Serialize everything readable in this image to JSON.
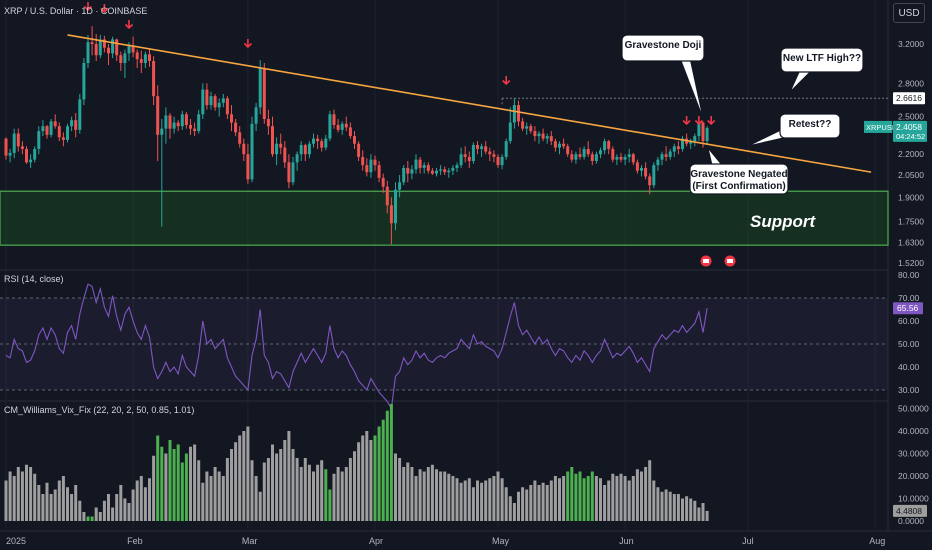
{
  "header": {
    "symbol_title": "XRP / U.S. Dollar · 1D · COINBASE",
    "currency_button": "USD"
  },
  "colors": {
    "background": "#131722",
    "up": "#26a69a",
    "down": "#ef5350",
    "trendline": "#f7a541",
    "support_zone": "#1b5e20",
    "rsi_line": "#7e57c2",
    "vix_gray": "#9e9e9e",
    "vix_green": "#4caf50"
  },
  "annotations": {
    "gravestone_doji": "Gravestone Doji",
    "new_ltf_high": "New LTF High??",
    "retest": "Retest??",
    "gravestone_negated": "Gravestone Negated\n(First Confirmation)",
    "support": "Support"
  },
  "price_labels": {
    "symbol_tag": "XRPUSD",
    "last_price": "2.4058",
    "countdown": "04:24:52",
    "level_marker": "2.6616"
  },
  "rsi_panel": {
    "title": "RSI (14, close)",
    "current": "65.56",
    "ticks": [
      "80.00",
      "70.00",
      "60.00",
      "50.00",
      "40.00",
      "30.00"
    ]
  },
  "vix_panel": {
    "title": "CM_Williams_Vix_Fix (22, 20, 2, 50, 0.85, 1.01)",
    "current": "4.4808",
    "ticks": [
      "50.0000",
      "40.0000",
      "30.0000",
      "20.0000",
      "10.0000",
      "0.0000"
    ]
  },
  "chart_data": {
    "type": "candlestick",
    "x_labels": [
      "2025",
      "Feb",
      "Mar",
      "Apr",
      "May",
      "Jun",
      "Jul",
      "Aug"
    ],
    "y_ticks": [
      "3.2000",
      "2.8000",
      "2.5000",
      "2.2000",
      "2.0500",
      "1.9000",
      "1.7500",
      "1.6300",
      "1.5200"
    ],
    "scale": "log",
    "support_zone": [
      1.615,
      1.94
    ],
    "trendline": [
      {
        "date": "2025-01-16",
        "price": 3.3
      },
      {
        "date": "2025-07-31",
        "price": 2.07
      }
    ],
    "level_line": 2.6616,
    "ohlc": [
      [
        2.32,
        2.33,
        2.16,
        2.19
      ],
      [
        2.19,
        2.24,
        2.14,
        2.21
      ],
      [
        2.21,
        2.4,
        2.17,
        2.36
      ],
      [
        2.36,
        2.4,
        2.22,
        2.26
      ],
      [
        2.26,
        2.3,
        2.2,
        2.24
      ],
      [
        2.24,
        2.26,
        2.13,
        2.14
      ],
      [
        2.14,
        2.2,
        2.1,
        2.16
      ],
      [
        2.16,
        2.26,
        2.14,
        2.24
      ],
      [
        2.24,
        2.42,
        2.2,
        2.38
      ],
      [
        2.38,
        2.47,
        2.34,
        2.42
      ],
      [
        2.42,
        2.43,
        2.32,
        2.35
      ],
      [
        2.35,
        2.48,
        2.33,
        2.46
      ],
      [
        2.46,
        2.52,
        2.4,
        2.42
      ],
      [
        2.42,
        2.45,
        2.3,
        2.33
      ],
      [
        2.33,
        2.37,
        2.26,
        2.31
      ],
      [
        2.31,
        2.44,
        2.29,
        2.42
      ],
      [
        2.42,
        2.5,
        2.38,
        2.47
      ],
      [
        2.47,
        2.53,
        2.33,
        2.39
      ],
      [
        2.39,
        2.7,
        2.36,
        2.65
      ],
      [
        2.65,
        3.05,
        2.6,
        3.0
      ],
      [
        3.0,
        3.3,
        2.95,
        3.22
      ],
      [
        3.22,
        3.4,
        3.08,
        3.2
      ],
      [
        3.2,
        3.31,
        3.02,
        3.08
      ],
      [
        3.08,
        3.3,
        3.05,
        3.25
      ],
      [
        3.25,
        3.29,
        3.11,
        3.16
      ],
      [
        3.16,
        3.2,
        2.98,
        3.1
      ],
      [
        3.1,
        3.28,
        3.05,
        3.25
      ],
      [
        3.25,
        3.26,
        3.02,
        3.08
      ],
      [
        3.08,
        3.12,
        2.92,
        3.0
      ],
      [
        3.0,
        3.14,
        2.85,
        3.1
      ],
      [
        3.1,
        3.22,
        3.02,
        3.18
      ],
      [
        3.18,
        3.28,
        3.06,
        3.11
      ],
      [
        3.11,
        3.14,
        2.95,
        3.04
      ],
      [
        3.04,
        3.13,
        2.9,
        3.0
      ],
      [
        3.0,
        3.12,
        2.95,
        3.09
      ],
      [
        3.09,
        3.15,
        2.96,
        3.02
      ],
      [
        3.02,
        3.07,
        2.6,
        2.68
      ],
      [
        2.68,
        2.78,
        2.15,
        2.35
      ],
      [
        2.35,
        2.48,
        1.72,
        2.4
      ],
      [
        2.4,
        2.58,
        2.28,
        2.51
      ],
      [
        2.51,
        2.53,
        2.32,
        2.4
      ],
      [
        2.4,
        2.5,
        2.36,
        2.45
      ],
      [
        2.45,
        2.47,
        2.38,
        2.42
      ],
      [
        2.42,
        2.55,
        2.39,
        2.52
      ],
      [
        2.52,
        2.54,
        2.4,
        2.43
      ],
      [
        2.43,
        2.48,
        2.35,
        2.4
      ],
      [
        2.4,
        2.45,
        2.34,
        2.38
      ],
      [
        2.38,
        2.56,
        2.36,
        2.52
      ],
      [
        2.52,
        2.8,
        2.48,
        2.74
      ],
      [
        2.74,
        2.8,
        2.56,
        2.6
      ],
      [
        2.6,
        2.72,
        2.56,
        2.68
      ],
      [
        2.68,
        2.7,
        2.55,
        2.58
      ],
      [
        2.58,
        2.66,
        2.5,
        2.62
      ],
      [
        2.62,
        2.7,
        2.58,
        2.66
      ],
      [
        2.66,
        2.68,
        2.48,
        2.52
      ],
      [
        2.52,
        2.6,
        2.38,
        2.45
      ],
      [
        2.45,
        2.48,
        2.34,
        2.37
      ],
      [
        2.37,
        2.42,
        2.25,
        2.28
      ],
      [
        2.28,
        2.32,
        2.15,
        2.2
      ],
      [
        2.2,
        2.28,
        1.99,
        2.02
      ],
      [
        2.02,
        2.5,
        2.0,
        2.44
      ],
      [
        2.44,
        2.62,
        2.38,
        2.58
      ],
      [
        2.58,
        3.03,
        2.52,
        2.95
      ],
      [
        2.95,
        3.0,
        2.44,
        2.48
      ],
      [
        2.48,
        2.56,
        2.35,
        2.42
      ],
      [
        2.42,
        2.5,
        2.18,
        2.2
      ],
      [
        2.2,
        2.33,
        2.12,
        2.28
      ],
      [
        2.28,
        2.36,
        2.2,
        2.25
      ],
      [
        2.25,
        2.3,
        2.1,
        2.14
      ],
      [
        2.14,
        2.2,
        1.96,
        2.0
      ],
      [
        2.0,
        2.18,
        1.98,
        2.14
      ],
      [
        2.14,
        2.22,
        2.08,
        2.2
      ],
      [
        2.2,
        2.3,
        2.15,
        2.27
      ],
      [
        2.27,
        2.28,
        2.15,
        2.2
      ],
      [
        2.2,
        2.3,
        2.17,
        2.28
      ],
      [
        2.28,
        2.36,
        2.25,
        2.32
      ],
      [
        2.32,
        2.35,
        2.24,
        2.3
      ],
      [
        2.3,
        2.32,
        2.22,
        2.25
      ],
      [
        2.25,
        2.35,
        2.23,
        2.32
      ],
      [
        2.32,
        2.55,
        2.3,
        2.52
      ],
      [
        2.52,
        2.56,
        2.4,
        2.43
      ],
      [
        2.43,
        2.48,
        2.37,
        2.39
      ],
      [
        2.39,
        2.46,
        2.35,
        2.44
      ],
      [
        2.44,
        2.5,
        2.38,
        2.41
      ],
      [
        2.41,
        2.45,
        2.32,
        2.34
      ],
      [
        2.34,
        2.38,
        2.24,
        2.28
      ],
      [
        2.28,
        2.3,
        2.15,
        2.18
      ],
      [
        2.18,
        2.23,
        2.08,
        2.12
      ],
      [
        2.12,
        2.17,
        2.04,
        2.07
      ],
      [
        2.07,
        2.2,
        2.03,
        2.16
      ],
      [
        2.16,
        2.19,
        2.08,
        2.12
      ],
      [
        2.12,
        2.15,
        2.0,
        2.03
      ],
      [
        2.03,
        2.06,
        1.93,
        1.97
      ],
      [
        1.97,
        2.01,
        1.8,
        1.85
      ],
      [
        1.85,
        1.9,
        1.62,
        1.74
      ],
      [
        1.74,
        2.0,
        1.7,
        1.95
      ],
      [
        1.95,
        2.05,
        1.9,
        2.0
      ],
      [
        2.0,
        2.12,
        1.98,
        2.1
      ],
      [
        2.1,
        2.15,
        2.0,
        2.06
      ],
      [
        2.06,
        2.12,
        2.02,
        2.09
      ],
      [
        2.09,
        2.2,
        2.06,
        2.16
      ],
      [
        2.16,
        2.18,
        2.06,
        2.1
      ],
      [
        2.1,
        2.14,
        2.06,
        2.12
      ],
      [
        2.12,
        2.14,
        2.06,
        2.08
      ],
      [
        2.08,
        2.1,
        2.05,
        2.06
      ],
      [
        2.06,
        2.1,
        2.04,
        2.08
      ],
      [
        2.08,
        2.12,
        2.05,
        2.09
      ],
      [
        2.09,
        2.11,
        2.05,
        2.07
      ],
      [
        2.07,
        2.1,
        2.03,
        2.08
      ],
      [
        2.08,
        2.12,
        2.05,
        2.1
      ],
      [
        2.1,
        2.14,
        2.07,
        2.12
      ],
      [
        2.12,
        2.25,
        2.1,
        2.2
      ],
      [
        2.2,
        2.26,
        2.14,
        2.18
      ],
      [
        2.18,
        2.22,
        2.1,
        2.15
      ],
      [
        2.15,
        2.29,
        2.13,
        2.27
      ],
      [
        2.27,
        2.3,
        2.2,
        2.24
      ],
      [
        2.24,
        2.28,
        2.18,
        2.26
      ],
      [
        2.26,
        2.3,
        2.2,
        2.22
      ],
      [
        2.22,
        2.25,
        2.15,
        2.2
      ],
      [
        2.2,
        2.23,
        2.14,
        2.18
      ],
      [
        2.18,
        2.2,
        2.1,
        2.12
      ],
      [
        2.12,
        2.2,
        2.09,
        2.18
      ],
      [
        2.18,
        2.32,
        2.16,
        2.3
      ],
      [
        2.3,
        2.58,
        2.28,
        2.45
      ],
      [
        2.45,
        2.66,
        2.4,
        2.6
      ],
      [
        2.6,
        2.64,
        2.42,
        2.46
      ],
      [
        2.46,
        2.49,
        2.38,
        2.4
      ],
      [
        2.4,
        2.45,
        2.35,
        2.42
      ],
      [
        2.42,
        2.44,
        2.36,
        2.38
      ],
      [
        2.38,
        2.42,
        2.3,
        2.34
      ],
      [
        2.34,
        2.38,
        2.28,
        2.36
      ],
      [
        2.36,
        2.4,
        2.3,
        2.32
      ],
      [
        2.32,
        2.36,
        2.28,
        2.34
      ],
      [
        2.34,
        2.38,
        2.27,
        2.3
      ],
      [
        2.3,
        2.32,
        2.22,
        2.25
      ],
      [
        2.25,
        2.3,
        2.2,
        2.28
      ],
      [
        2.28,
        2.32,
        2.24,
        2.26
      ],
      [
        2.26,
        2.28,
        2.18,
        2.2
      ],
      [
        2.2,
        2.23,
        2.14,
        2.16
      ],
      [
        2.16,
        2.22,
        2.13,
        2.2
      ],
      [
        2.2,
        2.25,
        2.16,
        2.18
      ],
      [
        2.18,
        2.26,
        2.16,
        2.24
      ],
      [
        2.24,
        2.3,
        2.18,
        2.2
      ],
      [
        2.2,
        2.22,
        2.12,
        2.15
      ],
      [
        2.15,
        2.22,
        2.13,
        2.2
      ],
      [
        2.2,
        2.25,
        2.17,
        2.23
      ],
      [
        2.23,
        2.32,
        2.2,
        2.3
      ],
      [
        2.3,
        2.31,
        2.2,
        2.24
      ],
      [
        2.24,
        2.26,
        2.14,
        2.16
      ],
      [
        2.16,
        2.2,
        2.12,
        2.18
      ],
      [
        2.18,
        2.21,
        2.14,
        2.16
      ],
      [
        2.16,
        2.2,
        2.12,
        2.18
      ],
      [
        2.18,
        2.24,
        2.14,
        2.2
      ],
      [
        2.2,
        2.21,
        2.12,
        2.14
      ],
      [
        2.14,
        2.16,
        2.06,
        2.08
      ],
      [
        2.08,
        2.12,
        2.04,
        2.1
      ],
      [
        2.1,
        2.14,
        2.02,
        2.04
      ],
      [
        2.04,
        2.06,
        1.92,
        1.98
      ],
      [
        1.98,
        2.14,
        1.96,
        2.12
      ],
      [
        2.12,
        2.18,
        2.08,
        2.16
      ],
      [
        2.16,
        2.22,
        2.12,
        2.2
      ],
      [
        2.2,
        2.26,
        2.15,
        2.18
      ],
      [
        2.18,
        2.24,
        2.16,
        2.22
      ],
      [
        2.22,
        2.28,
        2.18,
        2.26
      ],
      [
        2.26,
        2.3,
        2.2,
        2.24
      ],
      [
        2.24,
        2.34,
        2.22,
        2.32
      ],
      [
        2.32,
        2.36,
        2.26,
        2.28
      ],
      [
        2.28,
        2.32,
        2.24,
        2.3
      ],
      [
        2.3,
        2.36,
        2.26,
        2.34
      ],
      [
        2.34,
        2.48,
        2.3,
        2.45
      ],
      [
        2.45,
        2.46,
        2.25,
        2.3
      ],
      [
        2.3,
        2.42,
        2.28,
        2.4058
      ]
    ],
    "rsi": [
      45,
      44,
      52,
      48,
      47,
      42,
      43,
      47,
      54,
      57,
      52,
      57,
      54,
      48,
      46,
      55,
      58,
      52,
      63,
      70,
      76,
      75,
      68,
      74,
      66,
      62,
      71,
      62,
      56,
      63,
      66,
      60,
      55,
      52,
      58,
      53,
      40,
      35,
      38,
      42,
      38,
      40,
      37,
      45,
      40,
      38,
      36,
      45,
      60,
      50,
      52,
      48,
      50,
      52,
      44,
      40,
      36,
      34,
      32,
      30,
      45,
      52,
      65,
      45,
      42,
      35,
      38,
      37,
      34,
      31,
      38,
      42,
      46,
      42,
      45,
      48,
      45,
      42,
      46,
      58,
      48,
      44,
      47,
      45,
      41,
      38,
      34,
      32,
      30,
      35,
      32,
      29,
      27,
      25,
      22,
      36,
      38,
      44,
      41,
      43,
      47,
      44,
      46,
      43,
      42,
      44,
      45,
      44,
      46,
      47,
      48,
      52,
      50,
      48,
      54,
      50,
      51,
      49,
      48,
      47,
      44,
      48,
      55,
      62,
      68,
      58,
      54,
      56,
      53,
      50,
      53,
      50,
      52,
      48,
      45,
      48,
      47,
      44,
      42,
      45,
      43,
      47,
      45,
      42,
      45,
      47,
      52,
      48,
      44,
      46,
      45,
      47,
      49,
      46,
      42,
      44,
      41,
      38,
      48,
      51,
      54,
      52,
      54,
      56,
      55,
      58,
      55,
      57,
      59,
      64,
      55,
      65.56
    ],
    "vix": [
      18,
      22,
      20,
      24,
      22,
      25,
      24,
      21,
      16,
      12,
      17,
      12,
      14,
      18,
      20,
      15,
      12,
      16,
      9,
      4,
      2,
      2,
      6,
      4,
      9,
      12,
      6,
      12,
      16,
      10,
      8,
      14,
      18,
      20,
      15,
      19,
      29,
      38,
      33,
      30,
      36,
      32,
      34,
      26,
      30,
      33,
      34,
      27,
      17,
      22,
      20,
      24,
      22,
      20,
      28,
      32,
      35,
      38,
      40,
      42,
      27,
      20,
      13,
      26,
      28,
      34,
      30,
      32,
      36,
      40,
      32,
      28,
      24,
      28,
      25,
      22,
      25,
      27,
      23,
      14,
      21,
      24,
      22,
      24,
      28,
      31,
      35,
      38,
      40,
      36,
      38,
      42,
      45,
      49,
      52,
      30,
      28,
      24,
      26,
      24,
      20,
      23,
      22,
      24,
      25,
      23,
      22,
      22,
      21,
      20,
      19,
      17,
      18,
      19,
      15,
      18,
      17,
      18,
      19,
      20,
      22,
      19,
      15,
      11,
      8,
      13,
      15,
      14,
      16,
      18,
      16,
      17,
      16,
      18,
      20,
      19,
      20,
      22,
      24,
      21,
      22,
      19,
      20,
      22,
      20,
      19,
      16,
      18,
      21,
      20,
      21,
      20,
      18,
      20,
      23,
      22,
      24,
      27,
      18,
      15,
      13,
      14,
      13,
      12,
      12,
      10,
      11,
      10,
      9,
      6,
      8,
      4.4808
    ],
    "vix_green_indices": [
      20,
      21,
      37,
      38,
      40,
      41,
      42,
      43,
      44,
      78,
      79,
      90,
      91,
      92,
      93,
      94,
      137,
      138,
      139,
      140,
      141,
      142,
      143
    ]
  }
}
